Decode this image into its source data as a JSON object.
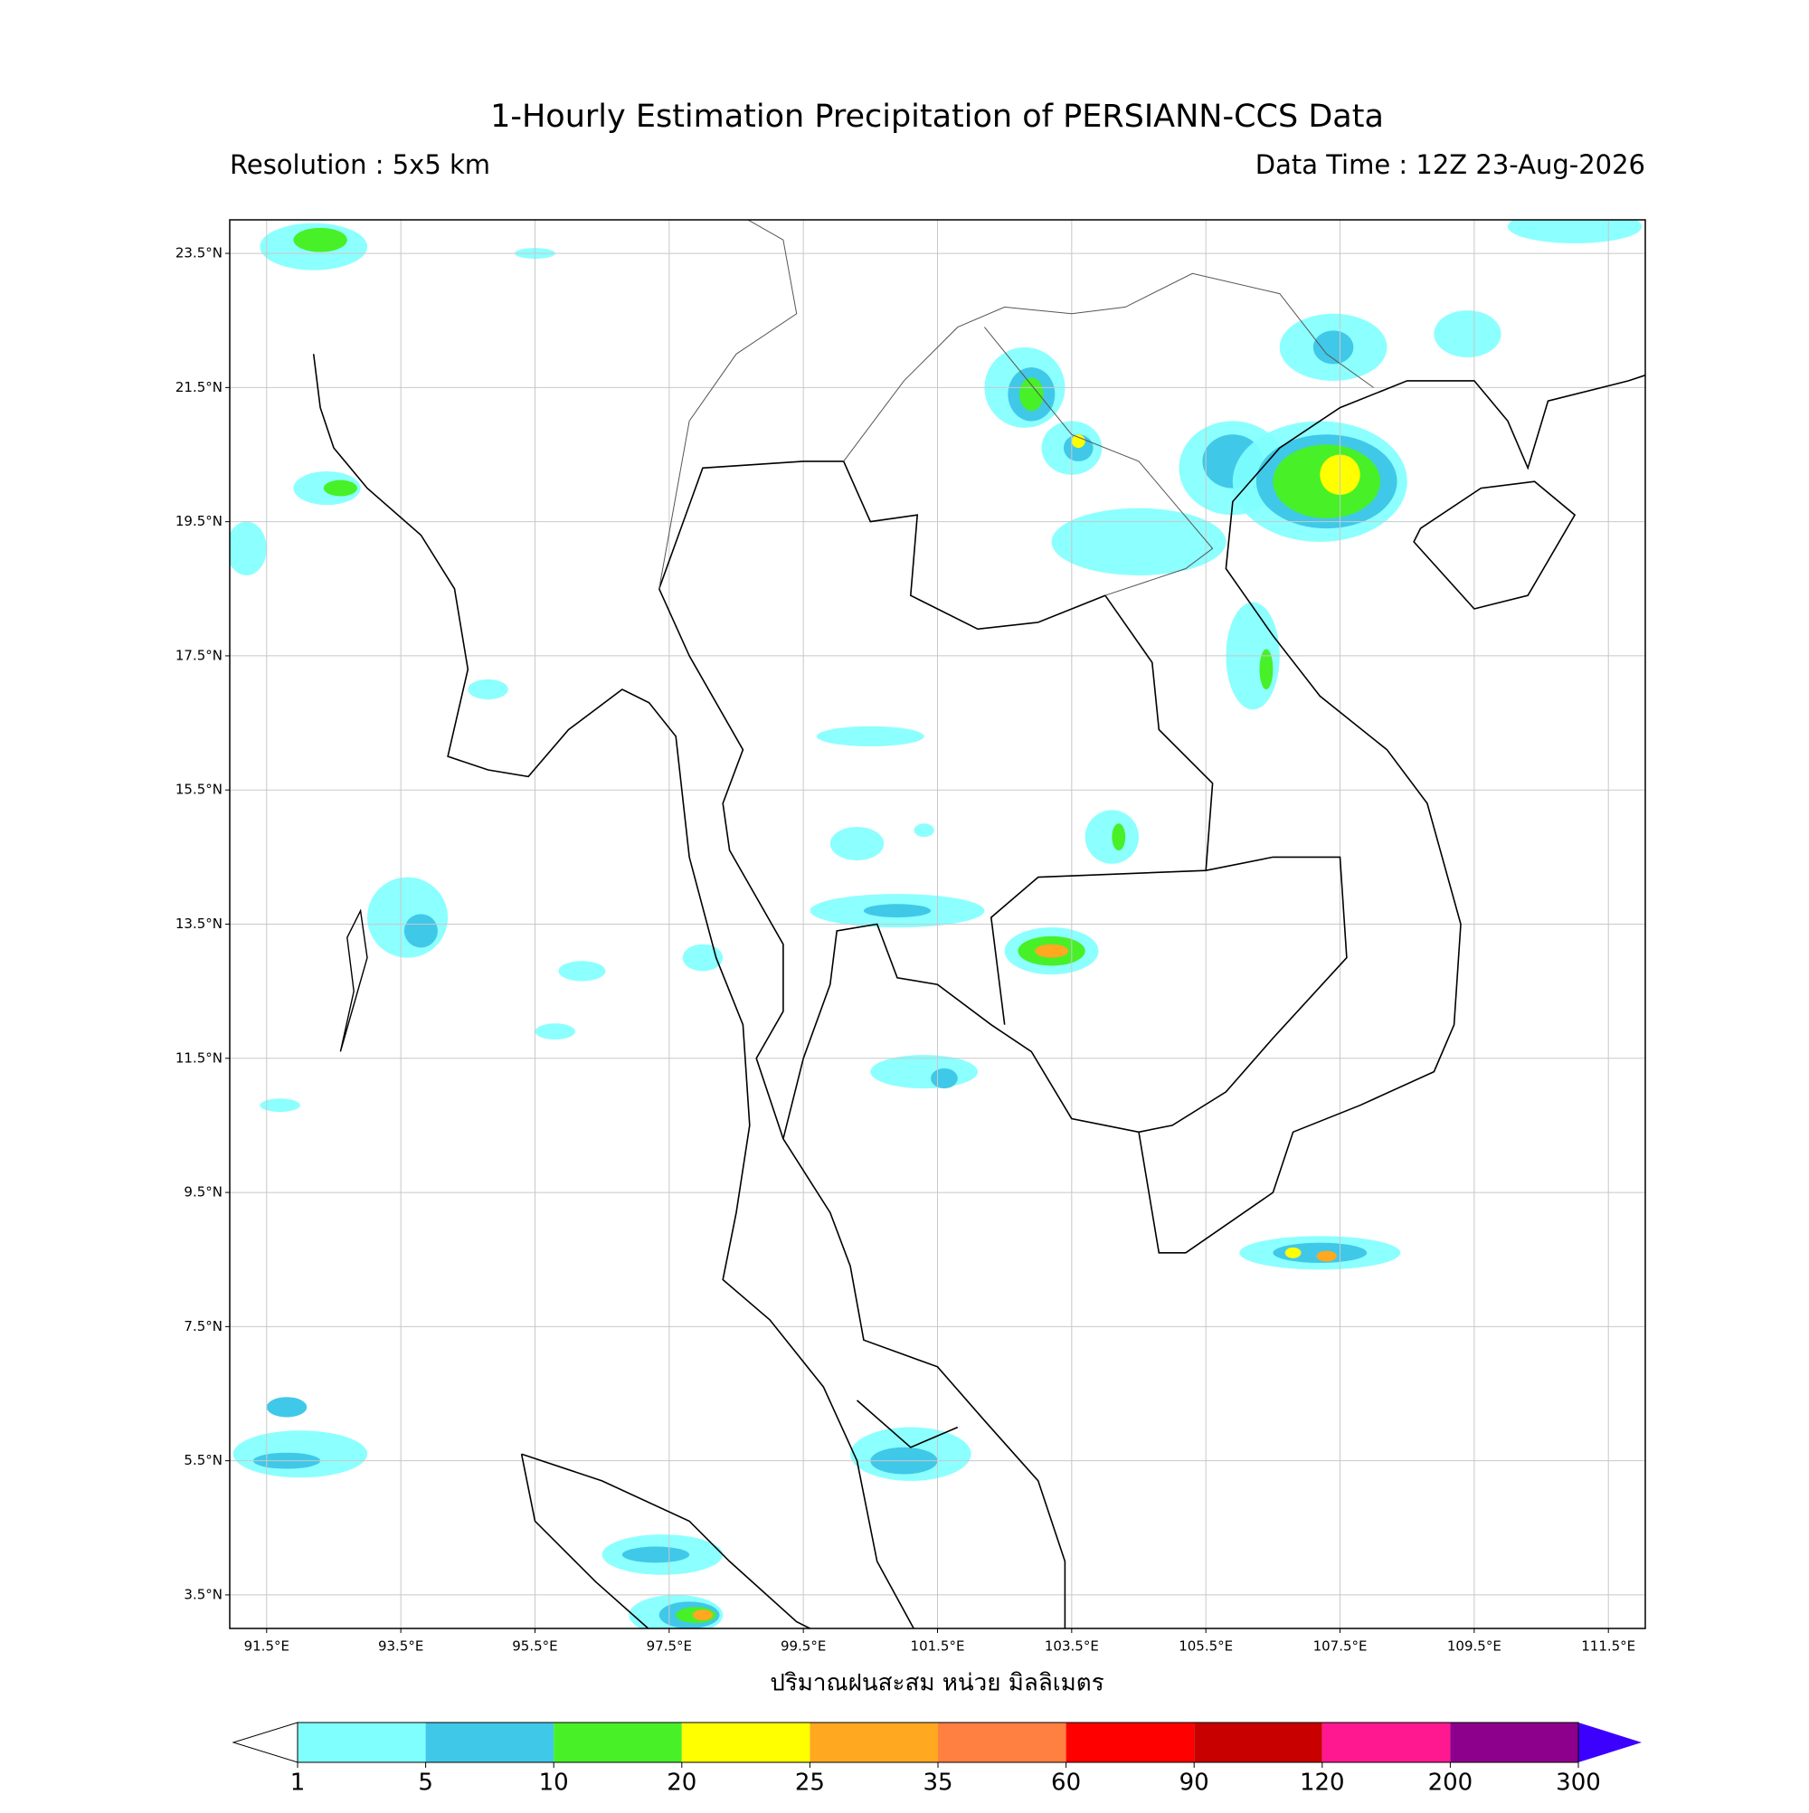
{
  "header": {
    "title": "1-Hourly Estimation Precipitation of PERSIANN-CCS Data",
    "resolution": "Resolution : 5x5 km",
    "data_time": "Data Time : 12Z 23-Aug-2026"
  },
  "map": {
    "lon_range": [
      90.95,
      112.05
    ],
    "lat_range": [
      3.0,
      24.0
    ],
    "grid": true,
    "lon_ticks": [
      {
        "value": 91.5,
        "label": "91.5°E"
      },
      {
        "value": 93.5,
        "label": "93.5°E"
      },
      {
        "value": 95.5,
        "label": "95.5°E"
      },
      {
        "value": 97.5,
        "label": "97.5°E"
      },
      {
        "value": 99.5,
        "label": "99.5°E"
      },
      {
        "value": 101.5,
        "label": "101.5°E"
      },
      {
        "value": 103.5,
        "label": "103.5°E"
      },
      {
        "value": 105.5,
        "label": "105.5°E"
      },
      {
        "value": 107.5,
        "label": "107.5°E"
      },
      {
        "value": 109.5,
        "label": "109.5°E"
      },
      {
        "value": 111.5,
        "label": "111.5°E"
      }
    ],
    "lat_ticks": [
      {
        "value": 23.5,
        "label": "23.5°N"
      },
      {
        "value": 21.5,
        "label": "21.5°N"
      },
      {
        "value": 19.5,
        "label": "19.5°N"
      },
      {
        "value": 17.5,
        "label": "17.5°N"
      },
      {
        "value": 15.5,
        "label": "15.5°N"
      },
      {
        "value": 13.5,
        "label": "13.5°N"
      },
      {
        "value": 11.5,
        "label": "11.5°N"
      },
      {
        "value": 9.5,
        "label": "9.5°N"
      },
      {
        "value": 7.5,
        "label": "7.5°N"
      },
      {
        "value": 5.5,
        "label": "5.5°N"
      },
      {
        "value": 3.5,
        "label": "3.5°N"
      }
    ],
    "x_label": "ปริมาณฝนสะสม หน่วย มิลลิเมตร"
  },
  "colorbar": {
    "levels": [
      1,
      5,
      10,
      20,
      25,
      35,
      60,
      90,
      120,
      200,
      300
    ],
    "colors": [
      "#80ffff",
      "#40c8e8",
      "#48f028",
      "#ffff00",
      "#ffa820",
      "#ff8040",
      "#ff0000",
      "#c80000",
      "#ff1890",
      "#8c008c"
    ],
    "under_color": "#ffffff",
    "over_color": "#3c00ff"
  }
}
